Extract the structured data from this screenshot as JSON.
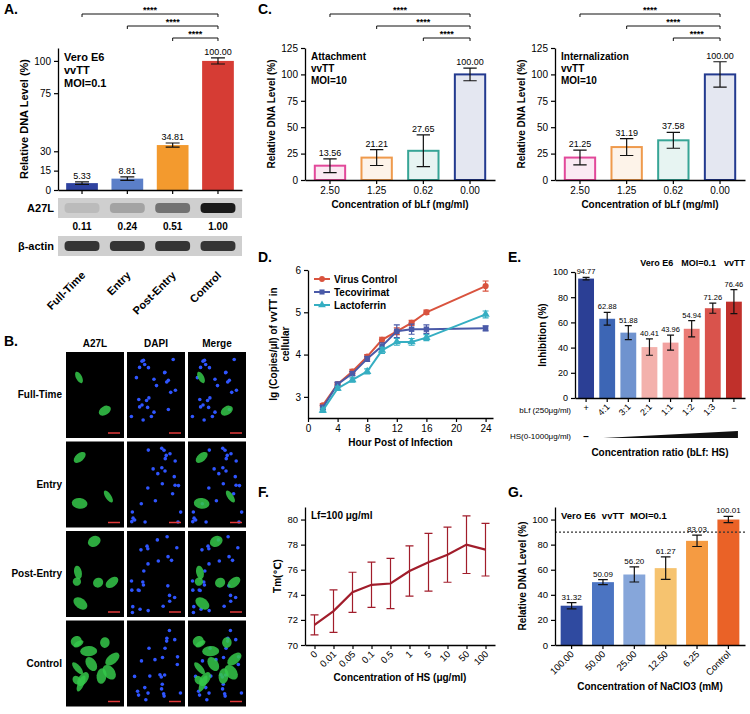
{
  "chart_data": [
    {
      "panel": "A.",
      "type": "bar",
      "annotations": [
        "Vero E6",
        "vvTT",
        "MOI=0.1"
      ],
      "ylabel": "Relative DNA Level (%)",
      "categories": [
        "Full-Time",
        "Entry",
        "Post-Entry",
        "Control"
      ],
      "values": [
        5.33,
        8.81,
        34.81,
        100.0
      ],
      "value_labels": [
        "5.33",
        "8.81",
        "34.81",
        "100.00"
      ],
      "errors": [
        0.9,
        1.4,
        1.6,
        2.4
      ],
      "colors": [
        "#2f43a0",
        "#5b7fc8",
        "#f39a2e",
        "#d63c34"
      ],
      "data_labels": true,
      "ylim": [
        0,
        110
      ],
      "yticks": [
        0,
        15,
        30,
        75,
        100
      ],
      "significance": [
        {
          "from": "Full-Time",
          "to": "Control",
          "label": "****"
        },
        {
          "from": "Entry",
          "to": "Control",
          "label": "****"
        },
        {
          "from": "Post-Entry",
          "to": "Control",
          "label": "****"
        }
      ],
      "blot": {
        "rows": [
          {
            "label": "A27L",
            "values": [
              0.11,
              0.24,
              0.51,
              1.0
            ],
            "value_labels": [
              "0.11",
              "0.24",
              "0.51",
              "1.00"
            ]
          },
          {
            "label": "β-actin"
          }
        ]
      }
    },
    {
      "panel": "C.",
      "type": "bar",
      "annotations": [
        "Attachment",
        "vvTT",
        "MOI=10"
      ],
      "ylabel": "Relative DNA Level (%)",
      "xlabel": "Concentration of bLf (mg/ml)",
      "categories": [
        "2.50",
        "1.25",
        "0.62",
        "0.00"
      ],
      "values": [
        13.56,
        21.21,
        27.65,
        100.0
      ],
      "value_labels": [
        "13.56",
        "21.21",
        "27.65",
        "100.00"
      ],
      "errors": [
        6.5,
        7.5,
        15,
        6
      ],
      "colors": [
        "#e2489a",
        "#ef9a4c",
        "#37a596",
        "#233a8f"
      ],
      "data_labels": true,
      "ylim": [
        0,
        125
      ],
      "yticks": [
        0,
        25,
        50,
        75,
        100,
        125
      ],
      "significance": [
        {
          "from": "2.50",
          "to": "0.00",
          "label": "****"
        },
        {
          "from": "1.25",
          "to": "0.00",
          "label": "****"
        },
        {
          "from": "0.62",
          "to": "0.00",
          "label": "****"
        }
      ]
    },
    {
      "type": "bar",
      "annotations": [
        "Internalization",
        "vvTT",
        "MOI=10"
      ],
      "ylabel": "Relative DNA Level (%)",
      "xlabel": "Concentration of bLf (mg/ml)",
      "categories": [
        "2.50",
        "1.25",
        "0.62",
        "0.00"
      ],
      "values": [
        21.25,
        31.19,
        37.58,
        100.0
      ],
      "value_labels": [
        "21.25",
        "31.19",
        "37.58",
        "100.00"
      ],
      "errors": [
        7,
        8,
        7.5,
        12
      ],
      "colors": [
        "#e2489a",
        "#ef9a4c",
        "#37a596",
        "#233a8f"
      ],
      "data_labels": true,
      "ylim": [
        0,
        125
      ],
      "yticks": [
        0,
        25,
        50,
        75,
        100,
        125
      ],
      "significance": [
        {
          "from": "2.50",
          "to": "0.00",
          "label": "****"
        },
        {
          "from": "1.25",
          "to": "0.00",
          "label": "****"
        },
        {
          "from": "0.62",
          "to": "0.00",
          "label": "****"
        }
      ]
    },
    {
      "panel": "D.",
      "type": "line",
      "ylabel": "lg (Copies/μl) of vvTT in cellular",
      "xlabel": "Hour Post of Infection",
      "x": [
        2,
        4,
        6,
        8,
        10,
        12,
        14,
        16,
        24
      ],
      "series": [
        {
          "name": "Virus Control",
          "color": "#d9533e",
          "marker": "circle",
          "values": [
            2.8,
            3.3,
            3.6,
            3.95,
            4.35,
            4.55,
            4.75,
            5.0,
            5.62
          ],
          "errors": [
            0.04,
            0.04,
            0.05,
            0.05,
            0.06,
            0.08,
            0.06,
            0.05,
            0.12
          ]
        },
        {
          "name": "Tecovirimat",
          "color": "#4a5aa8",
          "marker": "square",
          "values": [
            2.75,
            3.3,
            3.55,
            3.9,
            4.2,
            4.55,
            4.6,
            4.6,
            4.62
          ],
          "errors": [
            0.05,
            0.05,
            0.05,
            0.06,
            0.08,
            0.15,
            0.12,
            0.1,
            0.06
          ]
        },
        {
          "name": "Lactoferrin",
          "color": "#35aec2",
          "marker": "triangle",
          "values": [
            2.68,
            3.2,
            3.4,
            3.6,
            4.1,
            4.3,
            4.3,
            4.4,
            4.95
          ],
          "errors": [
            0.05,
            0.05,
            0.05,
            0.06,
            0.07,
            0.08,
            0.08,
            0.07,
            0.08
          ]
        }
      ],
      "xlim": [
        0,
        25
      ],
      "xticks": [
        0,
        4,
        8,
        12,
        16,
        20,
        24
      ],
      "ylim": [
        2.5,
        6
      ],
      "yticks": [
        3,
        4,
        5,
        6
      ],
      "legend": "top-left"
    },
    {
      "panel": "E.",
      "type": "bar",
      "annotations": [
        "Vero E6",
        "MOI=0.1",
        "vvTT"
      ],
      "ylabel": "Inhibition (%)",
      "xlabel": "Concentration ratio (bLf: HS)",
      "row_labels": [
        "bLf (250μg/ml)",
        "HS(0-1000μg/ml)"
      ],
      "HS_first": "−",
      "categories": [
        "+",
        "4:1",
        "3:1",
        "2:1",
        "1:1",
        "1:2",
        "1:3",
        "−"
      ],
      "values": [
        94.77,
        62.88,
        51.88,
        40.41,
        43.96,
        54.94,
        71.26,
        76.46
      ],
      "value_labels": [
        "94.77",
        "62.88",
        "51.88",
        "40.41",
        "43.96",
        "54.94",
        "71.26",
        "76.46"
      ],
      "errors": [
        1.0,
        5.0,
        5.5,
        6.5,
        6.0,
        6.5,
        4.0,
        9.5
      ],
      "colors": [
        "#2b3f95",
        "#3d66b5",
        "#6f93cf",
        "#f3b1ac",
        "#f2a1a0",
        "#ea7a74",
        "#d9534c",
        "#c0302b"
      ],
      "data_labels": true,
      "ylim": [
        0,
        100
      ],
      "yticks": [
        0,
        20,
        40,
        60,
        80,
        100
      ]
    },
    {
      "panel": "F.",
      "type": "line",
      "annotations": [
        "Lf=100 μg/ml"
      ],
      "ylabel": "Tm(℃)",
      "xlabel": "Concentration of HS (μg/ml)",
      "categories": [
        "0",
        "0.01",
        "0.05",
        "0.1",
        "0.5",
        "1",
        "5",
        "10",
        "50",
        "100"
      ],
      "values": [
        71.6,
        72.7,
        74.2,
        74.8,
        74.9,
        75.9,
        76.6,
        77.2,
        78.0,
        77.6
      ],
      "errors": [
        0.8,
        1.7,
        1.6,
        1.8,
        2.0,
        2.0,
        2.3,
        2.2,
        2.3,
        2.1
      ],
      "color": "#a11d2b",
      "ylim": [
        70,
        81
      ],
      "yticks": [
        70,
        72,
        74,
        76,
        78,
        80
      ]
    },
    {
      "panel": "G.",
      "type": "bar",
      "annotations": [
        "Vero E6",
        "vvTT",
        "MOI=0.1"
      ],
      "ylabel": "Relative DNA Level (%)",
      "xlabel": "Concentration of NaClO3 (mM)",
      "categories": [
        "100.00",
        "50.00",
        "25.00",
        "12.50",
        "6.25",
        "Control"
      ],
      "values": [
        31.32,
        50.09,
        56.2,
        61.27,
        83.03,
        100.01
      ],
      "value_labels": [
        "31.32",
        "50.09",
        "56.20",
        "61.27",
        "83.03",
        "100.01"
      ],
      "errors": [
        2.5,
        2.0,
        6.0,
        9.0,
        4.5,
        2.5
      ],
      "colors": [
        "#2f4aa0",
        "#4b74c2",
        "#86a6da",
        "#f6c36f",
        "#f59b42",
        "#ea6227"
      ],
      "reference_line": 90,
      "data_labels": true,
      "ylim": [
        0,
        110
      ],
      "yticks": [
        0,
        20,
        40,
        60,
        80,
        100
      ]
    }
  ],
  "images": {
    "panel": "B.",
    "columns": [
      "A27L",
      "DAPI",
      "Merge"
    ],
    "rows": [
      "Full-Time",
      "Entry",
      "Post-Entry",
      "Control"
    ]
  }
}
